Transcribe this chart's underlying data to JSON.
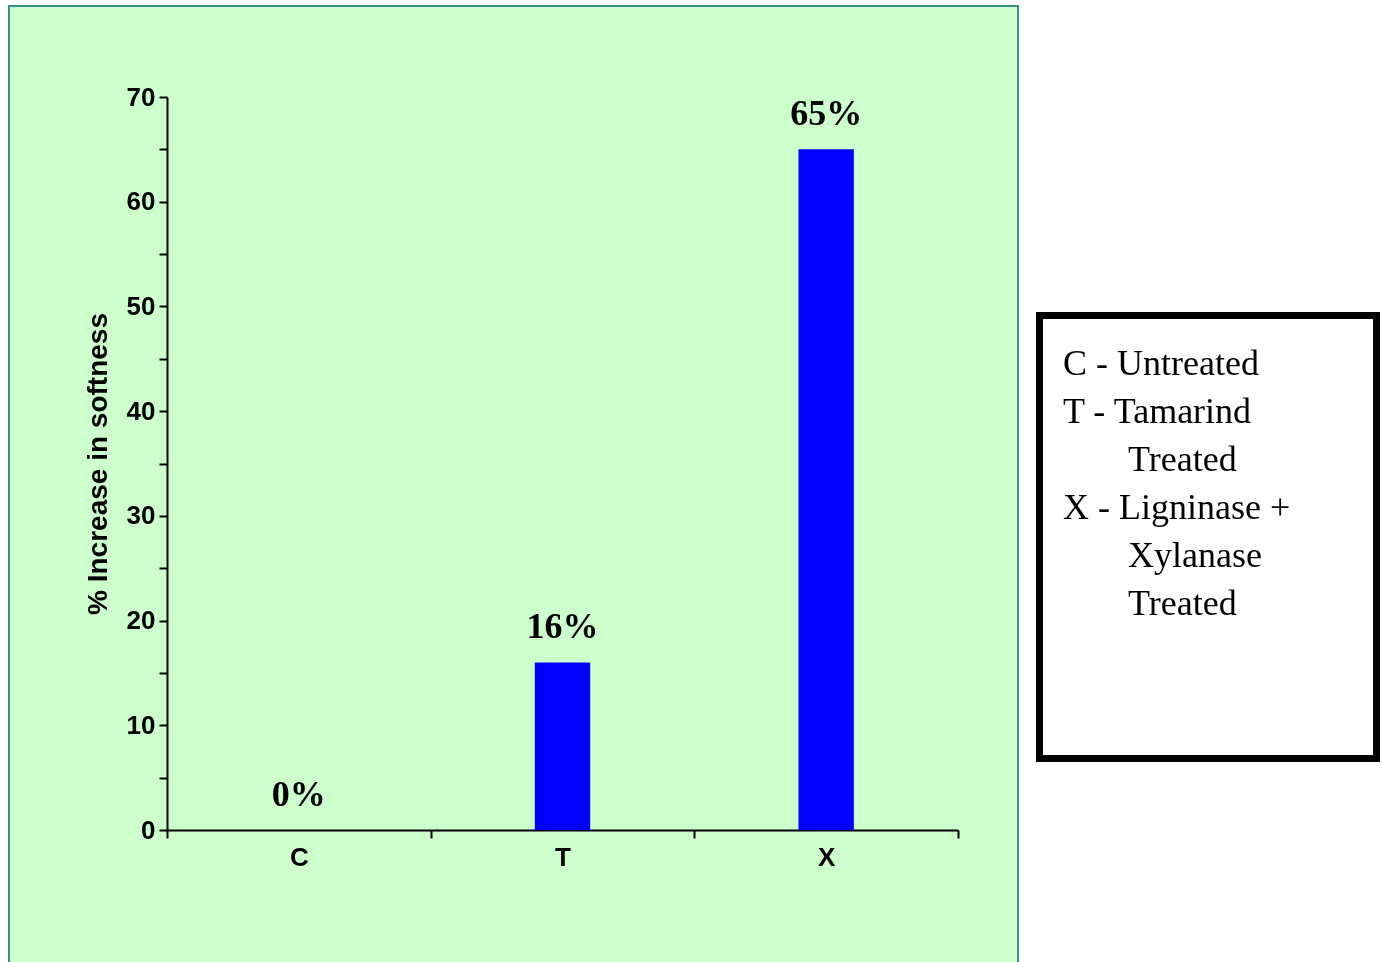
{
  "chart_data": {
    "type": "bar",
    "ylabel": "% Increase in softness",
    "categories": [
      "C",
      "T",
      "X"
    ],
    "values": [
      0,
      16,
      65
    ],
    "color": "#0000ff",
    "value_labels": [
      "0%",
      "16%",
      "65%"
    ],
    "ylim": [
      0,
      70
    ],
    "yticks": [
      0,
      {
        "value": 5,
        "label": null
      },
      10,
      {
        "value": 15,
        "label": null
      },
      20,
      {
        "value": 25,
        "label": null
      },
      30,
      {
        "value": 35,
        "label": null
      },
      40,
      {
        "value": 45,
        "label": null
      },
      50,
      {
        "value": 55,
        "label": null
      },
      60,
      {
        "value": 65,
        "label": null
      },
      70
    ],
    "annotations": [
      "C - Untreated",
      "T - Tamarind Treated",
      "X - Ligninase + Xylanase Treated"
    ]
  }
}
